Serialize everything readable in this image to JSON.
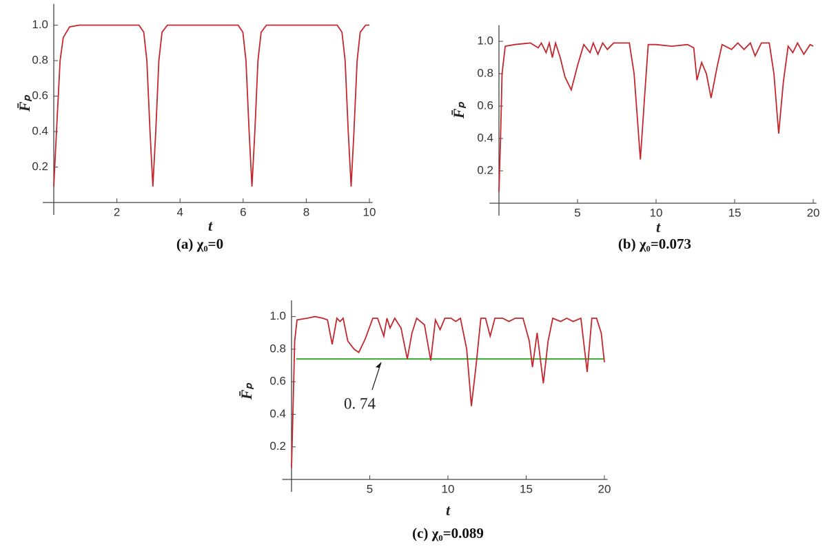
{
  "chart_data": [
    {
      "type": "line",
      "caption": "(a) χ₀=0",
      "xlabel": "t",
      "ylabel": "F̄ₚ",
      "color": "#c3262b",
      "xlim": [
        -0.35,
        10.1
      ],
      "ylim": [
        0,
        1.12
      ],
      "xticks": [
        2,
        4,
        6,
        8,
        10
      ],
      "yticks": [
        0.2,
        0.4,
        0.6,
        0.8,
        {
          "value": 1,
          "label": "1.0"
        }
      ],
      "x": [
        0,
        0.1,
        0.2,
        0.3,
        0.5,
        0.8,
        1.5,
        2.5,
        2.7,
        2.85,
        2.95,
        3.05,
        3.14,
        3.23,
        3.33,
        3.43,
        3.6,
        4.5,
        5.5,
        5.84,
        5.99,
        6.09,
        6.19,
        6.28,
        6.37,
        6.47,
        6.57,
        6.74,
        7.5,
        8.5,
        8.98,
        9.13,
        9.23,
        9.33,
        9.42,
        9.51,
        9.61,
        9.71,
        9.88,
        10
      ],
      "values": [
        0.09,
        0.45,
        0.8,
        0.93,
        0.99,
        1.0,
        1.0,
        1.0,
        1.0,
        0.96,
        0.8,
        0.4,
        0.09,
        0.4,
        0.8,
        0.96,
        1.0,
        1.0,
        1.0,
        1.0,
        0.96,
        0.8,
        0.4,
        0.09,
        0.4,
        0.8,
        0.96,
        1.0,
        1.0,
        1.0,
        1.0,
        0.96,
        0.8,
        0.4,
        0.09,
        0.4,
        0.8,
        0.96,
        1.0,
        1.0
      ]
    },
    {
      "type": "line",
      "caption": "(b) χ₀=0.073",
      "xlabel": "t",
      "ylabel": "F̄ₚ",
      "color": "#c3262b",
      "xlim": [
        -0.6,
        20.2
      ],
      "ylim": [
        0,
        1.1
      ],
      "xticks": [
        5,
        10,
        15,
        20
      ],
      "yticks": [
        0.2,
        0.4,
        0.6,
        0.8,
        {
          "value": 1,
          "label": "1.0"
        }
      ],
      "x": [
        0,
        0.1,
        0.2,
        0.4,
        1,
        2,
        2.5,
        2.7,
        3.0,
        3.2,
        3.4,
        3.6,
        3.9,
        4.2,
        4.6,
        5.0,
        5.4,
        5.8,
        6.0,
        6.3,
        6.6,
        6.9,
        7.3,
        8.3,
        8.6,
        9.0,
        9.3,
        9.5,
        10,
        11,
        12,
        12.4,
        12.6,
        12.9,
        13.2,
        13.5,
        13.9,
        14.2,
        14.8,
        15.2,
        15.6,
        16,
        16.3,
        16.7,
        17.2,
        17.5,
        17.8,
        18.1,
        18.4,
        18.7,
        19,
        19.4,
        19.8,
        20
      ],
      "values": [
        0.07,
        0.4,
        0.8,
        0.97,
        0.98,
        0.99,
        0.96,
        0.99,
        0.93,
        0.99,
        0.9,
        0.99,
        0.9,
        0.78,
        0.7,
        0.85,
        0.98,
        0.93,
        0.99,
        0.92,
        0.99,
        0.95,
        0.99,
        0.99,
        0.8,
        0.27,
        0.7,
        0.98,
        0.98,
        0.97,
        0.98,
        0.96,
        0.76,
        0.87,
        0.8,
        0.65,
        0.85,
        0.98,
        0.95,
        0.99,
        0.95,
        0.99,
        0.91,
        0.99,
        0.99,
        0.8,
        0.43,
        0.75,
        0.97,
        0.93,
        0.99,
        0.92,
        0.98,
        0.97
      ]
    },
    {
      "type": "line",
      "caption": "(c) χ₀=0.089",
      "xlabel": "t",
      "ylabel": "F̄ₚ",
      "color": "#c3262b",
      "xlim": [
        -0.6,
        20.2
      ],
      "ylim": [
        0,
        1.1
      ],
      "xticks": [
        5,
        10,
        15,
        20
      ],
      "yticks": [
        0.2,
        0.4,
        0.6,
        0.8,
        {
          "value": 1,
          "label": "1.0"
        }
      ],
      "reference_line": {
        "value": 0.74,
        "label": "0. 74",
        "color": "#3aa935"
      },
      "x": [
        0,
        0.1,
        0.2,
        0.35,
        1,
        1.5,
        2.0,
        2.3,
        2.6,
        2.9,
        3.1,
        3.3,
        3.6,
        4.0,
        4.3,
        4.7,
        5.2,
        5.5,
        5.9,
        6.1,
        6.3,
        6.6,
        7.0,
        7.4,
        7.7,
        8.0,
        8.5,
        8.9,
        9.2,
        9.5,
        9.8,
        10.2,
        10.5,
        10.8,
        11.2,
        11.5,
        11.8,
        12.1,
        12.4,
        12.7,
        13.0,
        13.5,
        13.9,
        14.3,
        14.8,
        15.2,
        15.4,
        15.7,
        16.1,
        16.4,
        16.7,
        17.2,
        17.6,
        18,
        18.5,
        18.9,
        19.2,
        19.5,
        19.8,
        20
      ],
      "values": [
        0.07,
        0.45,
        0.85,
        0.98,
        0.99,
        1.0,
        0.99,
        0.98,
        0.83,
        0.99,
        0.97,
        0.99,
        0.85,
        0.8,
        0.78,
        0.86,
        0.99,
        0.99,
        0.88,
        0.99,
        0.93,
        0.99,
        0.93,
        0.74,
        0.9,
        0.99,
        0.95,
        0.73,
        0.98,
        0.92,
        0.99,
        0.99,
        0.97,
        0.99,
        0.8,
        0.45,
        0.7,
        0.99,
        0.99,
        0.88,
        0.99,
        0.99,
        0.97,
        0.99,
        0.99,
        0.85,
        0.69,
        0.9,
        0.59,
        0.85,
        0.99,
        0.97,
        0.99,
        0.97,
        0.99,
        0.66,
        0.99,
        0.99,
        0.9,
        0.72
      ]
    }
  ]
}
